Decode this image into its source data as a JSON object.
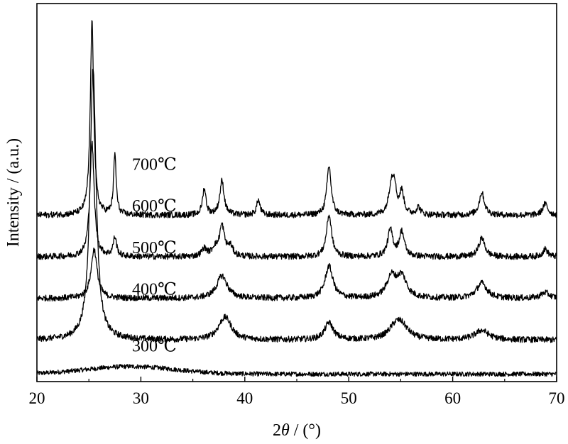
{
  "chart_data": {
    "type": "line",
    "title": "",
    "xlabel_prefix": "2",
    "xlabel_symbol": "θ",
    "xlabel_suffix": " / (°)",
    "ylabel": "Intensity / (a.u.)",
    "xlim": [
      20,
      70
    ],
    "ylim": [
      0,
      1
    ],
    "x_ticks": [
      20,
      30,
      40,
      50,
      60,
      70
    ],
    "y_ticks_labeled": false,
    "grid": false,
    "legend": "inline-labels",
    "series": [
      {
        "name": "300℃",
        "baseline": 0.02,
        "noise": 0.006,
        "humps": [
          {
            "center": 29,
            "height": 0.02,
            "width": 6
          }
        ],
        "peaks": []
      },
      {
        "name": "400℃",
        "baseline": 0.11,
        "noise": 0.008,
        "humps": [],
        "peaks": [
          {
            "x": 25.4,
            "h": 0.72,
            "w": 0.35
          },
          {
            "x": 37.9,
            "h": 0.035,
            "w": 0.7
          },
          {
            "x": 38.3,
            "h": 0.03,
            "w": 0.6
          },
          {
            "x": 48.1,
            "h": 0.045,
            "w": 0.5
          },
          {
            "x": 54.5,
            "h": 0.03,
            "w": 0.8
          },
          {
            "x": 55.1,
            "h": 0.03,
            "w": 0.8
          },
          {
            "x": 62.8,
            "h": 0.025,
            "w": 0.8
          }
        ]
      },
      {
        "name": "500℃",
        "baseline": 0.22,
        "noise": 0.008,
        "humps": [],
        "peaks": [
          {
            "x": 25.5,
            "h": 0.13,
            "w": 0.35
          },
          {
            "x": 37.8,
            "h": 0.06,
            "w": 0.6
          },
          {
            "x": 48.1,
            "h": 0.085,
            "w": 0.45
          },
          {
            "x": 54.1,
            "h": 0.055,
            "w": 0.55
          },
          {
            "x": 55.1,
            "h": 0.055,
            "w": 0.55
          },
          {
            "x": 62.8,
            "h": 0.04,
            "w": 0.6
          },
          {
            "x": 68.9,
            "h": 0.015,
            "w": 0.5
          }
        ]
      },
      {
        "name": "600℃",
        "baseline": 0.33,
        "noise": 0.008,
        "humps": [],
        "peaks": [
          {
            "x": 25.3,
            "h": 0.3,
            "w": 0.25
          },
          {
            "x": 27.5,
            "h": 0.05,
            "w": 0.2
          },
          {
            "x": 36.1,
            "h": 0.02,
            "w": 0.3
          },
          {
            "x": 37.1,
            "h": 0.02,
            "w": 0.3
          },
          {
            "x": 37.8,
            "h": 0.08,
            "w": 0.3
          },
          {
            "x": 38.6,
            "h": 0.025,
            "w": 0.3
          },
          {
            "x": 48.1,
            "h": 0.11,
            "w": 0.3
          },
          {
            "x": 54.0,
            "h": 0.07,
            "w": 0.3
          },
          {
            "x": 55.1,
            "h": 0.065,
            "w": 0.3
          },
          {
            "x": 62.8,
            "h": 0.05,
            "w": 0.35
          },
          {
            "x": 68.9,
            "h": 0.02,
            "w": 0.3
          }
        ]
      },
      {
        "name": "700℃",
        "baseline": 0.44,
        "noise": 0.008,
        "humps": [],
        "peaks": [
          {
            "x": 25.3,
            "h": 0.51,
            "w": 0.2
          },
          {
            "x": 27.5,
            "h": 0.16,
            "w": 0.15
          },
          {
            "x": 36.1,
            "h": 0.07,
            "w": 0.2
          },
          {
            "x": 37.8,
            "h": 0.09,
            "w": 0.25
          },
          {
            "x": 41.3,
            "h": 0.04,
            "w": 0.2
          },
          {
            "x": 48.1,
            "h": 0.13,
            "w": 0.25
          },
          {
            "x": 54.1,
            "h": 0.08,
            "w": 0.3
          },
          {
            "x": 54.4,
            "h": 0.06,
            "w": 0.2
          },
          {
            "x": 55.1,
            "h": 0.06,
            "w": 0.25
          },
          {
            "x": 56.7,
            "h": 0.02,
            "w": 0.25
          },
          {
            "x": 62.8,
            "h": 0.06,
            "w": 0.3
          },
          {
            "x": 68.9,
            "h": 0.03,
            "w": 0.3
          }
        ]
      }
    ],
    "annotations": [
      {
        "text": "700℃",
        "x": 31.3,
        "y": 0.56
      },
      {
        "text": "600℃",
        "x": 31.3,
        "y": 0.45
      },
      {
        "text": "500℃",
        "x": 31.3,
        "y": 0.34
      },
      {
        "text": "400℃",
        "x": 31.3,
        "y": 0.23
      },
      {
        "text": "300℃",
        "x": 31.3,
        "y": 0.08
      }
    ]
  }
}
